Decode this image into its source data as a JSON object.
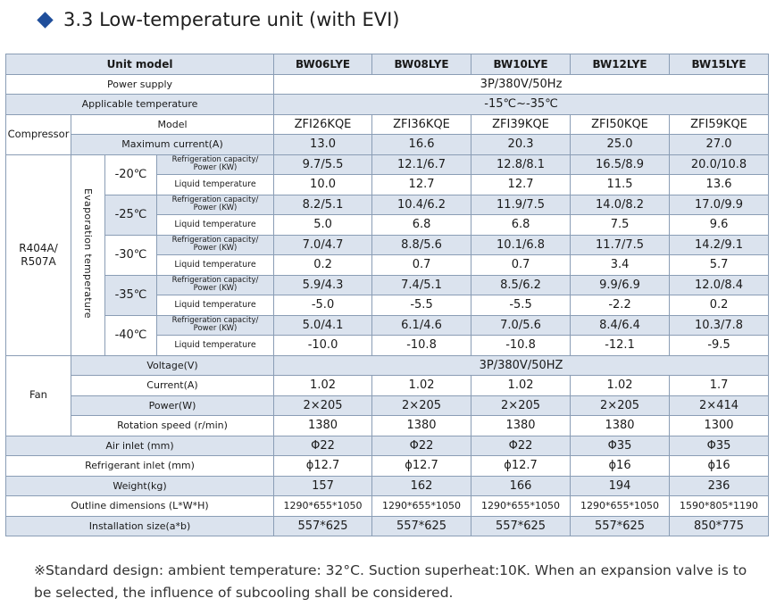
{
  "heading": "3.3 Low-temperature unit (with EVI)",
  "table": {
    "unit_model_label": "Unit model",
    "models": [
      "BW06LYE",
      "BW08LYE",
      "BW10LYE",
      "BW12LYE",
      "BW15LYE"
    ],
    "power_supply_label": "Power supply",
    "power_supply_value": "3P/380V/50Hz",
    "app_temp_label": "Applicable temperature",
    "app_temp_value": "-15℃~-35℃",
    "compressor_label": "Compressor",
    "comp_model_label": "Model",
    "comp_models": [
      "ZFI26KQE",
      "ZFI36KQE",
      "ZFI39KQE",
      "ZFI50KQE",
      "ZFI59KQE"
    ],
    "max_current_label": "Maximum current(A)",
    "max_current": [
      "13.0",
      "16.6",
      "20.3",
      "25.0",
      "27.0"
    ],
    "refrigerant_label_1": "R404A/",
    "refrigerant_label_2": "R507A",
    "evap_label": "Evaporation temperature",
    "cap_label_1": "Refrigeration capacity/",
    "cap_label_2": "Power (KW)",
    "liq_label": "Liquid temperature",
    "evap_rows": [
      {
        "temp": "-20℃",
        "capacity": [
          "9.7/5.5",
          "12.1/6.7",
          "12.8/8.1",
          "16.5/8.9",
          "20.0/10.8"
        ],
        "liquid": [
          "10.0",
          "12.7",
          "12.7",
          "11.5",
          "13.6"
        ]
      },
      {
        "temp": "-25℃",
        "capacity": [
          "8.2/5.1",
          "10.4/6.2",
          "11.9/7.5",
          "14.0/8.2",
          "17.0/9.9"
        ],
        "liquid": [
          "5.0",
          "6.8",
          "6.8",
          "7.5",
          "9.6"
        ]
      },
      {
        "temp": "-30℃",
        "capacity": [
          "7.0/4.7",
          "8.8/5.6",
          "10.1/6.8",
          "11.7/7.5",
          "14.2/9.1"
        ],
        "liquid": [
          "0.2",
          "0.7",
          "0.7",
          "3.4",
          "5.7"
        ]
      },
      {
        "temp": "-35℃",
        "capacity": [
          "5.9/4.3",
          "7.4/5.1",
          "8.5/6.2",
          "9.9/6.9",
          "12.0/8.4"
        ],
        "liquid": [
          "-5.0",
          "-5.5",
          "-5.5",
          "-2.2",
          "0.2"
        ]
      },
      {
        "temp": "-40℃",
        "capacity": [
          "5.0/4.1",
          "6.1/4.6",
          "7.0/5.6",
          "8.4/6.4",
          "10.3/7.8"
        ],
        "liquid": [
          "-10.0",
          "-10.8",
          "-10.8",
          "-12.1",
          "-9.5"
        ]
      }
    ],
    "fan_label": "Fan",
    "fan_voltage_label": "Voltage(V)",
    "fan_voltage_value": "3P/380V/50HZ",
    "fan_current_label": "Current(A)",
    "fan_current": [
      "1.02",
      "1.02",
      "1.02",
      "1.02",
      "1.7"
    ],
    "fan_power_label": "Power(W)",
    "fan_power": [
      "2×205",
      "2×205",
      "2×205",
      "2×205",
      "2×414"
    ],
    "rotation_label": "Rotation speed (r/min)",
    "rotation": [
      "1380",
      "1380",
      "1380",
      "1380",
      "1300"
    ],
    "air_inlet_label": "Air inlet (mm)",
    "air_inlet": [
      "Φ22",
      "Φ22",
      "Φ22",
      "Φ35",
      "Φ35"
    ],
    "ref_inlet_label": "Refrigerant inlet (mm)",
    "ref_inlet": [
      "ϕ12.7",
      "ϕ12.7",
      "ϕ12.7",
      "ϕ16",
      "ϕ16"
    ],
    "weight_label": "Weight(kg)",
    "weight": [
      "157",
      "162",
      "166",
      "194",
      "236"
    ],
    "outline_label": "Outline dimensions (L*W*H)",
    "outline": [
      "1290*655*1050",
      "1290*655*1050",
      "1290*655*1050",
      "1290*655*1050",
      "1590*805*1190"
    ],
    "install_label": "Installation size(a*b)",
    "install": [
      "557*625",
      "557*625",
      "557*625",
      "557*625",
      "850*775"
    ]
  },
  "note": "※Standard design: ambient temperature: 32°C. Suction superheat:10K. When an expansion valve is to be selected, the influence of subcooling shall be considered."
}
